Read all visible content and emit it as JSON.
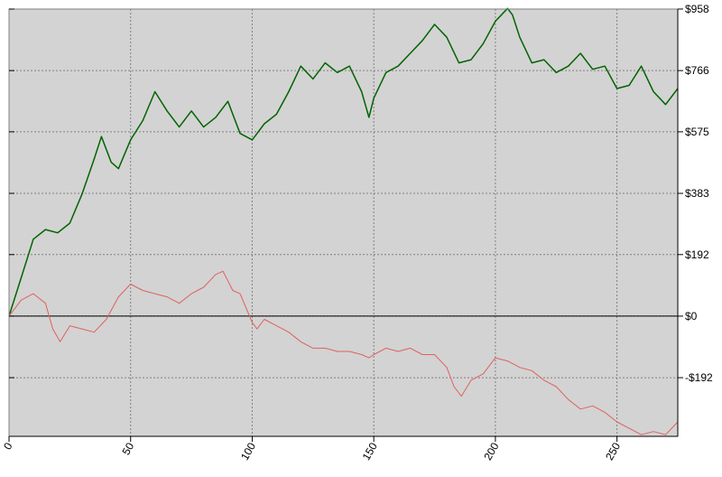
{
  "chart_data": {
    "type": "line",
    "title": "",
    "xlabel": "",
    "ylabel": "",
    "xlim": [
      0,
      275
    ],
    "ylim": [
      -375,
      958
    ],
    "grid": true,
    "x_ticks": [
      0,
      50,
      100,
      150,
      200,
      250
    ],
    "y_ticks": [
      958,
      766,
      575,
      383,
      192,
      0,
      -192
    ],
    "y_tick_labels": [
      "$958",
      "$766",
      "$575",
      "$383",
      "$192",
      "$0",
      "-$192"
    ],
    "background_color": "#d3d3d3",
    "series": [
      {
        "color": "#006400",
        "x": [
          0,
          5,
          10,
          15,
          20,
          25,
          30,
          35,
          38,
          42,
          45,
          50,
          55,
          60,
          65,
          70,
          75,
          80,
          85,
          90,
          95,
          100,
          105,
          110,
          115,
          120,
          125,
          130,
          135,
          140,
          145,
          148,
          150,
          155,
          160,
          165,
          170,
          175,
          180,
          185,
          190,
          195,
          200,
          205,
          207,
          210,
          215,
          220,
          225,
          230,
          235,
          240,
          245,
          250,
          255,
          260,
          265,
          270,
          275
        ],
        "values": [
          0,
          120,
          240,
          270,
          260,
          290,
          380,
          490,
          560,
          480,
          460,
          550,
          610,
          700,
          640,
          590,
          640,
          590,
          620,
          670,
          570,
          550,
          600,
          630,
          700,
          780,
          740,
          790,
          760,
          780,
          700,
          620,
          680,
          760,
          780,
          820,
          860,
          910,
          870,
          790,
          800,
          850,
          920,
          960,
          940,
          870,
          790,
          800,
          760,
          780,
          820,
          770,
          780,
          710,
          720,
          780,
          700,
          660,
          710
        ]
      },
      {
        "color": "#e06060",
        "x": [
          0,
          5,
          10,
          15,
          18,
          21,
          25,
          30,
          35,
          40,
          45,
          50,
          55,
          60,
          65,
          70,
          75,
          80,
          85,
          88,
          92,
          95,
          100,
          102,
          105,
          110,
          115,
          120,
          125,
          130,
          135,
          140,
          145,
          148,
          150,
          155,
          160,
          165,
          170,
          175,
          180,
          183,
          186,
          190,
          195,
          200,
          205,
          210,
          215,
          220,
          225,
          230,
          235,
          240,
          245,
          250,
          255,
          260,
          265,
          270,
          275
        ],
        "values": [
          0,
          50,
          70,
          40,
          -40,
          -80,
          -30,
          -40,
          -50,
          -10,
          60,
          100,
          80,
          70,
          60,
          40,
          70,
          90,
          130,
          140,
          80,
          70,
          -20,
          -40,
          -10,
          -30,
          -50,
          -80,
          -100,
          -100,
          -110,
          -110,
          -120,
          -130,
          -120,
          -100,
          -110,
          -100,
          -120,
          -120,
          -160,
          -220,
          -250,
          -200,
          -180,
          -130,
          -140,
          -160,
          -170,
          -200,
          -220,
          -260,
          -290,
          -280,
          -300,
          -330,
          -350,
          -370,
          -360,
          -370,
          -330
        ]
      }
    ]
  }
}
